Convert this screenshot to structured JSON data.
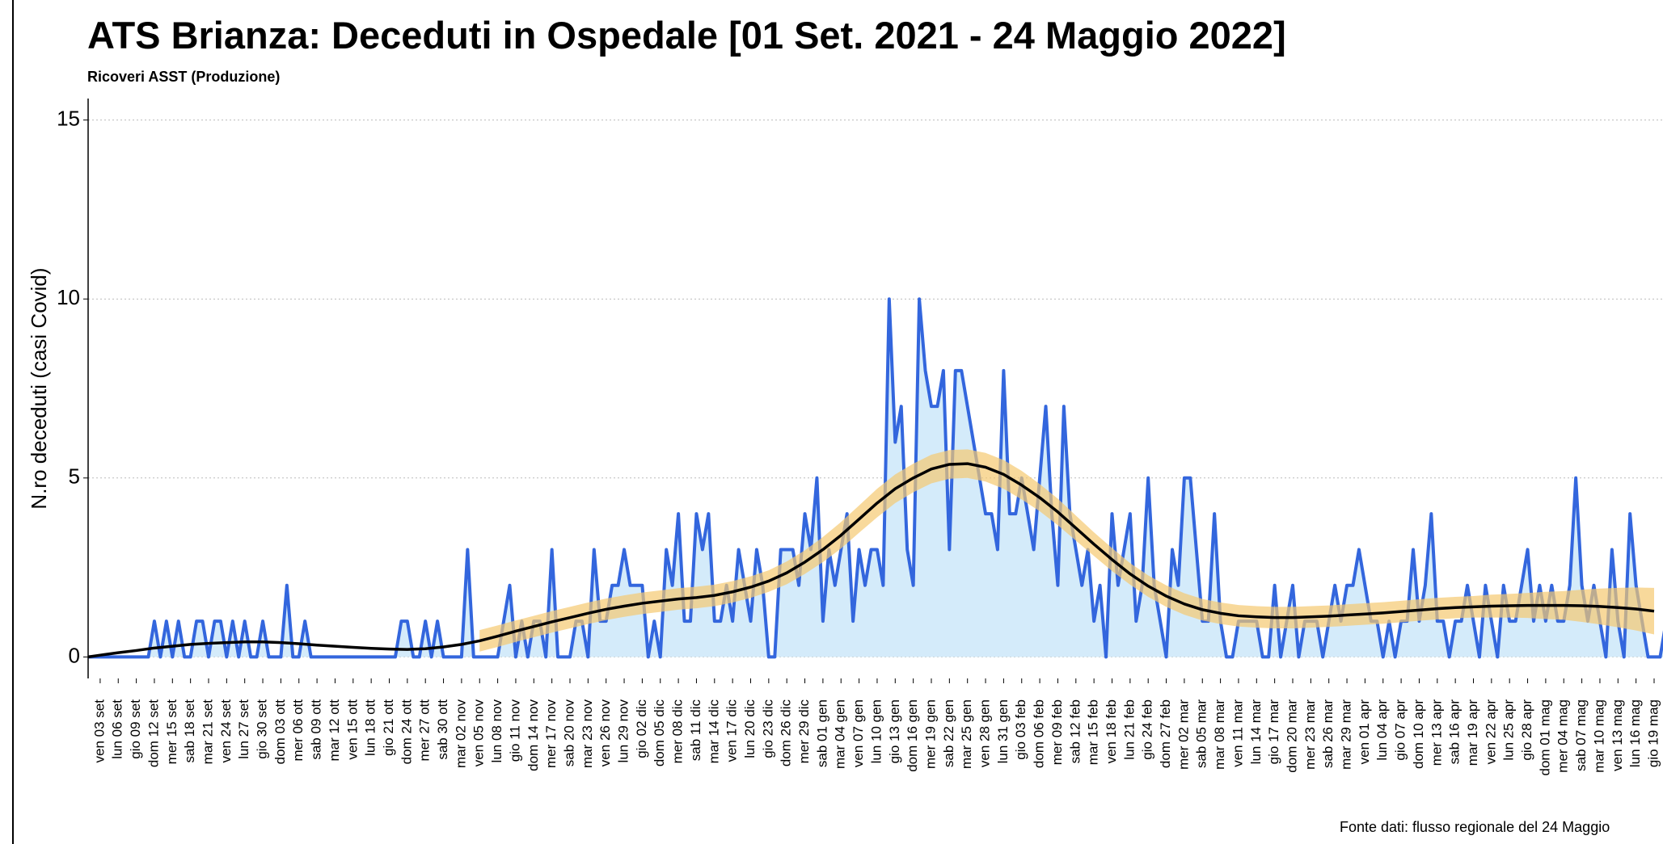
{
  "chart_data": {
    "type": "line",
    "title": "ATS Brianza: Deceduti in Ospedale [01 Set. 2021 - 24 Maggio 2022]",
    "subtitle": "Ricoveri ASST (Produzione)",
    "y_label": "N.ro deceduti (casi Covid)",
    "source": "Fonte dati: flusso regionale del 24 Maggio",
    "color": "#3366dd",
    "area_color": "#d4ebfa",
    "ylim": [
      -0.6,
      15.6
    ],
    "yticks": [
      0,
      5,
      10,
      15
    ],
    "grid": true,
    "categories": [
      null,
      null,
      "ven 03 set",
      null,
      null,
      "lun 06 set",
      null,
      null,
      "gio 09 set",
      null,
      null,
      "dom 12 set",
      null,
      null,
      "mer 15 set",
      null,
      null,
      "sab 18 set",
      null,
      null,
      "mar 21 set",
      null,
      null,
      "ven 24 set",
      null,
      null,
      "lun 27 set",
      null,
      null,
      "gio 30 set",
      null,
      null,
      "dom 03 ott",
      null,
      null,
      "mer 06 ott",
      null,
      null,
      "sab 09 ott",
      null,
      null,
      "mar 12 ott",
      null,
      null,
      "ven 15 ott",
      null,
      null,
      "lun 18 ott",
      null,
      null,
      "gio 21 ott",
      null,
      null,
      "dom 24 ott",
      null,
      null,
      "mer 27 ott",
      null,
      null,
      "sab 30 ott",
      null,
      null,
      "mar 02 nov",
      null,
      null,
      "ven 05 nov",
      null,
      null,
      "lun 08 nov",
      null,
      null,
      "gio 11 nov",
      null,
      null,
      "dom 14 nov",
      null,
      null,
      "mer 17 nov",
      null,
      null,
      "sab 20 nov",
      null,
      null,
      "mar 23 nov",
      null,
      null,
      "ven 26 nov",
      null,
      null,
      "lun 29 nov",
      null,
      null,
      "gio 02 dic",
      null,
      null,
      "dom 05 dic",
      null,
      null,
      "mer 08 dic",
      null,
      null,
      "sab 11 dic",
      null,
      null,
      "mar 14 dic",
      null,
      null,
      "ven 17 dic",
      null,
      null,
      "lun 20 dic",
      null,
      null,
      "gio 23 dic",
      null,
      null,
      "dom 26 dic",
      null,
      null,
      "mer 29 dic",
      null,
      null,
      "sab 01 gen",
      null,
      null,
      "mar 04 gen",
      null,
      null,
      "ven 07 gen",
      null,
      null,
      "lun 10 gen",
      null,
      null,
      "gio 13 gen",
      null,
      null,
      "dom 16 gen",
      null,
      null,
      "mer 19 gen",
      null,
      null,
      "sab 22 gen",
      null,
      null,
      "mar 25 gen",
      null,
      null,
      "ven 28 gen",
      null,
      null,
      "lun 31 gen",
      null,
      null,
      "gio 03 feb",
      null,
      null,
      "dom 06 feb",
      null,
      null,
      "mer 09 feb",
      null,
      null,
      "sab 12 feb",
      null,
      null,
      "mar 15 feb",
      null,
      null,
      "ven 18 feb",
      null,
      null,
      "lun 21 feb",
      null,
      null,
      "gio 24 feb",
      null,
      null,
      "dom 27 feb",
      null,
      null,
      "mer 02 mar",
      null,
      null,
      "sab 05 mar",
      null,
      null,
      "mar 08 mar",
      null,
      null,
      "ven 11 mar",
      null,
      null,
      "lun 14 mar",
      null,
      null,
      "gio 17 mar",
      null,
      null,
      "dom 20 mar",
      null,
      null,
      "mer 23 mar",
      null,
      null,
      "sab 26 mar",
      null,
      null,
      "mar 29 mar",
      null,
      null,
      "ven 01 apr",
      null,
      null,
      "lun 04 apr",
      null,
      null,
      "gio 07 apr",
      null,
      null,
      "dom 10 apr",
      null,
      null,
      "mer 13 apr",
      null,
      null,
      "sab 16 apr",
      null,
      null,
      "mar 19 apr",
      null,
      null,
      "ven 22 apr",
      null,
      null,
      "lun 25 apr",
      null,
      null,
      "gio 28 apr",
      null,
      null,
      "dom 01 mag",
      null,
      null,
      "mer 04 mag",
      null,
      null,
      "sab 07 mag",
      null,
      null,
      "mar 10 mag",
      null,
      null,
      "ven 13 mag",
      null,
      null,
      "lun 16 mag",
      null,
      null,
      "gio 19 mag",
      null,
      null,
      null,
      null,
      null
    ],
    "values": [
      0,
      0,
      0,
      0,
      0,
      0,
      0,
      0,
      0,
      0,
      0,
      1,
      0,
      1,
      0,
      1,
      0,
      0,
      1,
      1,
      0,
      1,
      1,
      0,
      1,
      0,
      1,
      0,
      0,
      1,
      0,
      0,
      0,
      2,
      0,
      0,
      1,
      0,
      0,
      0,
      0,
      0,
      0,
      0,
      0,
      0,
      0,
      0,
      0,
      0,
      0,
      0,
      1,
      1,
      0,
      0,
      1,
      0,
      1,
      0,
      0,
      0,
      0,
      3,
      0,
      0,
      0,
      0,
      0,
      1,
      2,
      0,
      1,
      0,
      1,
      1,
      0,
      3,
      0,
      0,
      0,
      1,
      1,
      0,
      3,
      1,
      1,
      2,
      2,
      3,
      2,
      2,
      2,
      0,
      1,
      0,
      3,
      2,
      4,
      1,
      1,
      4,
      3,
      4,
      1,
      1,
      2,
      1,
      3,
      2,
      1,
      3,
      2,
      0,
      0,
      3,
      3,
      3,
      2,
      4,
      3,
      5,
      1,
      3,
      2,
      3,
      4,
      1,
      3,
      2,
      3,
      3,
      2,
      10,
      6,
      7,
      3,
      2,
      10,
      8,
      7,
      7,
      8,
      3,
      8,
      8,
      7,
      6,
      5,
      4,
      4,
      3,
      8,
      4,
      4,
      5,
      4,
      3,
      5,
      7,
      4,
      2,
      7,
      4,
      3,
      2,
      3,
      1,
      2,
      0,
      4,
      2,
      3,
      4,
      1,
      2,
      5,
      2,
      1,
      0,
      3,
      2,
      5,
      5,
      3,
      1,
      1,
      4,
      1,
      0,
      0,
      1,
      1,
      1,
      1,
      0,
      0,
      2,
      0,
      1,
      2,
      0,
      1,
      1,
      1,
      0,
      1,
      2,
      1,
      2,
      2,
      3,
      2,
      1,
      1,
      0,
      1,
      0,
      1,
      1,
      3,
      1,
      2,
      4,
      1,
      1,
      0,
      1,
      1,
      2,
      1,
      0,
      2,
      1,
      0,
      2,
      1,
      1,
      2,
      3,
      1,
      2,
      1,
      2,
      1,
      1,
      2,
      5,
      2,
      1,
      2,
      1,
      0,
      3,
      1,
      0,
      4,
      2,
      1,
      0,
      0,
      0,
      1,
      1,
      1,
      1
    ],
    "trend": {
      "color": "#000000",
      "band_color": "#f5c970",
      "values": [
        0.05,
        0.12,
        0.18,
        0.25,
        0.3,
        0.35,
        0.38,
        0.4,
        0.42,
        0.42,
        0.4,
        0.37,
        0.33,
        0.3,
        0.27,
        0.24,
        0.22,
        0.21,
        0.23,
        0.28,
        0.35,
        0.45,
        0.58,
        0.72,
        0.85,
        0.98,
        1.1,
        1.22,
        1.33,
        1.42,
        1.5,
        1.56,
        1.62,
        1.66,
        1.72,
        1.82,
        1.95,
        2.12,
        2.35,
        2.65,
        3.0,
        3.4,
        3.85,
        4.3,
        4.7,
        5.0,
        5.25,
        5.38,
        5.4,
        5.3,
        5.1,
        4.8,
        4.45,
        4.05,
        3.6,
        3.15,
        2.72,
        2.32,
        1.98,
        1.7,
        1.48,
        1.32,
        1.22,
        1.15,
        1.12,
        1.1,
        1.1,
        1.12,
        1.14,
        1.17,
        1.2,
        1.23,
        1.27,
        1.31,
        1.35,
        1.38,
        1.4,
        1.42,
        1.43,
        1.44,
        1.44,
        1.44,
        1.43,
        1.41,
        1.38,
        1.34,
        1.28
      ],
      "lower": [
        null,
        null,
        null,
        null,
        null,
        null,
        null,
        null,
        null,
        null,
        null,
        null,
        null,
        null,
        null,
        null,
        null,
        null,
        null,
        null,
        null,
        0.15,
        0.28,
        0.42,
        0.55,
        0.68,
        0.8,
        0.92,
        1.03,
        1.12,
        1.2,
        1.26,
        1.32,
        1.36,
        1.42,
        1.52,
        1.65,
        1.82,
        2.03,
        2.32,
        2.65,
        3.03,
        3.47,
        3.9,
        4.3,
        4.6,
        4.85,
        4.98,
        5.0,
        4.9,
        4.7,
        4.4,
        4.07,
        3.68,
        3.25,
        2.82,
        2.4,
        2.02,
        1.68,
        1.4,
        1.18,
        1.02,
        0.92,
        0.85,
        0.82,
        0.8,
        0.8,
        0.82,
        0.84,
        0.87,
        0.9,
        0.93,
        0.97,
        1.01,
        1.05,
        1.08,
        1.1,
        1.1,
        1.1,
        1.09,
        1.06,
        1.04,
        0.98,
        0.91,
        0.83,
        0.74,
        0.63
      ],
      "upper": [
        null,
        null,
        null,
        null,
        null,
        null,
        null,
        null,
        null,
        null,
        null,
        null,
        null,
        null,
        null,
        null,
        null,
        null,
        null,
        null,
        null,
        0.75,
        0.88,
        1.02,
        1.15,
        1.28,
        1.4,
        1.52,
        1.63,
        1.72,
        1.8,
        1.86,
        1.92,
        1.96,
        2.02,
        2.12,
        2.25,
        2.42,
        2.67,
        2.98,
        3.35,
        3.77,
        4.23,
        4.7,
        5.1,
        5.4,
        5.65,
        5.78,
        5.8,
        5.7,
        5.5,
        5.2,
        4.83,
        4.42,
        3.95,
        3.48,
        3.04,
        2.62,
        2.28,
        2.0,
        1.78,
        1.62,
        1.52,
        1.45,
        1.42,
        1.4,
        1.4,
        1.42,
        1.44,
        1.47,
        1.5,
        1.53,
        1.57,
        1.61,
        1.65,
        1.68,
        1.7,
        1.74,
        1.76,
        1.79,
        1.82,
        1.84,
        1.88,
        1.91,
        1.93,
        1.94,
        1.93
      ]
    }
  }
}
